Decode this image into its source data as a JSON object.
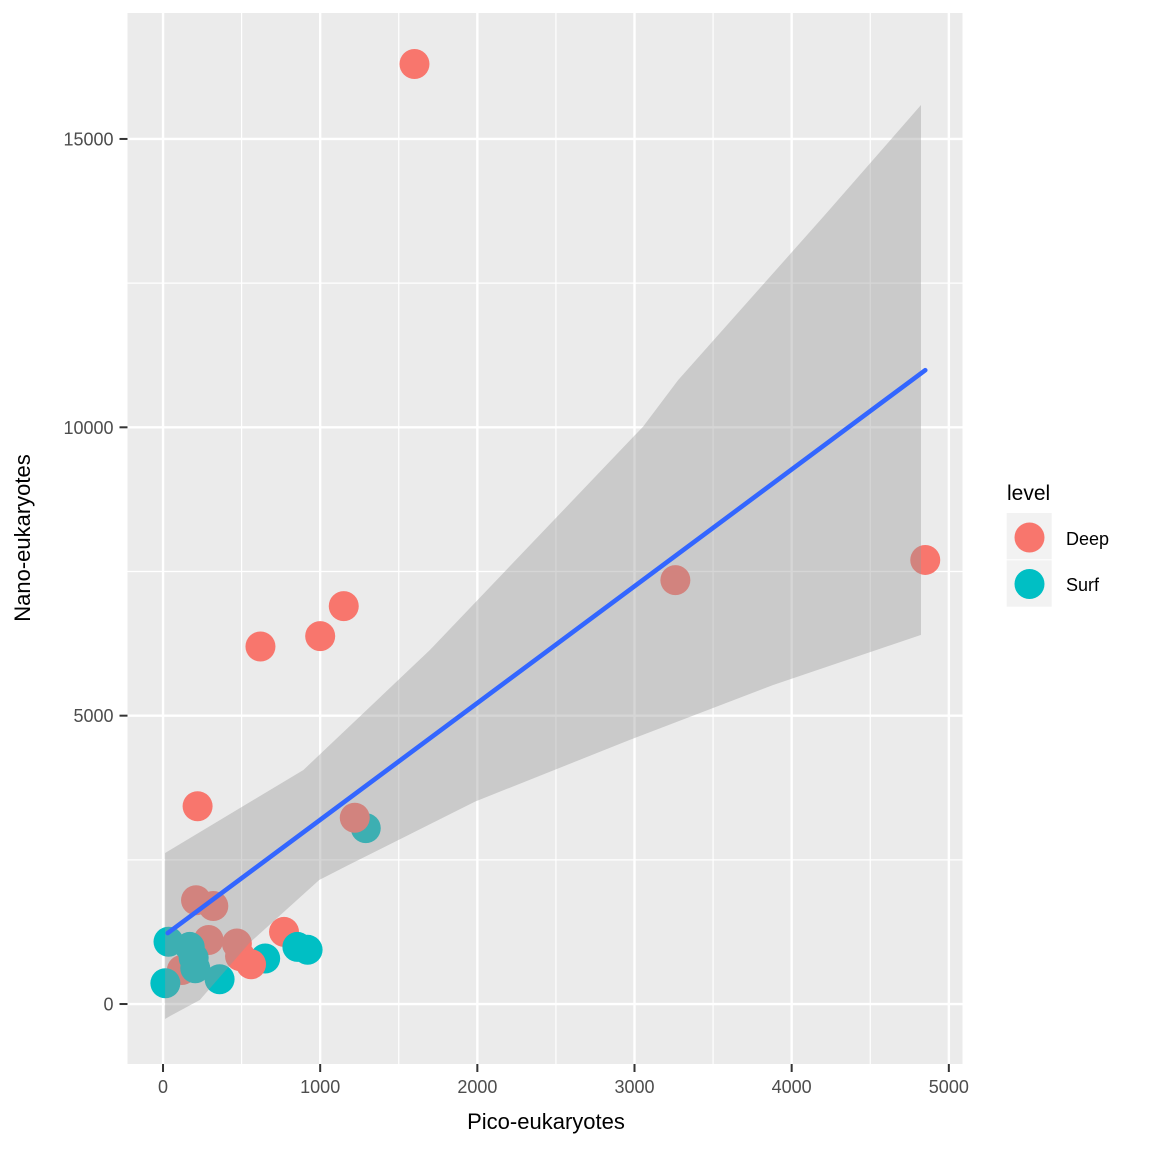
{
  "figure": {
    "background": "#FFFFFF",
    "panel_background": "#EBEBEB",
    "grid_color": "#FFFFFF",
    "tick_mark_color": "#333333",
    "tick_text_color": "#4D4D4D"
  },
  "chart_data": {
    "type": "scatter",
    "title": "",
    "xlabel": "Pico-eukaryotes",
    "ylabel": "Nano-eukaryotes",
    "xlim": [
      -226,
      5087
    ],
    "ylim": [
      -1040,
      17184
    ],
    "x_ticks": [
      0,
      1000,
      2000,
      3000,
      4000,
      5000
    ],
    "y_ticks": [
      0,
      5000,
      10000,
      15000
    ],
    "x_minor_ticks": [
      500,
      1500,
      2500,
      3500,
      4500
    ],
    "y_minor_ticks": [
      2500,
      7500,
      12500
    ],
    "grid": true,
    "point_radius": 15,
    "levels": {
      "Deep": "#F8766D",
      "Surf": "#00BFC4"
    },
    "points": [
      {
        "x": 120,
        "y": 590,
        "level": "Deep"
      },
      {
        "x": 290,
        "y": 1110,
        "level": "Deep"
      },
      {
        "x": 470,
        "y": 1050,
        "level": "Deep"
      },
      {
        "x": 490,
        "y": 830,
        "level": "Deep"
      },
      {
        "x": 210,
        "y": 1800,
        "level": "Deep"
      },
      {
        "x": 320,
        "y": 1700,
        "level": "Deep"
      },
      {
        "x": 15,
        "y": 360,
        "level": "Surf"
      },
      {
        "x": 35,
        "y": 1080,
        "level": "Surf"
      },
      {
        "x": 170,
        "y": 990,
        "level": "Surf"
      },
      {
        "x": 195,
        "y": 800,
        "level": "Surf"
      },
      {
        "x": 205,
        "y": 620,
        "level": "Surf"
      },
      {
        "x": 360,
        "y": 430,
        "level": "Surf"
      },
      {
        "x": 650,
        "y": 790,
        "level": "Surf"
      },
      {
        "x": 770,
        "y": 1250,
        "level": "Deep"
      },
      {
        "x": 855,
        "y": 990,
        "level": "Surf"
      },
      {
        "x": 920,
        "y": 940,
        "level": "Surf"
      },
      {
        "x": 560,
        "y": 690,
        "level": "Deep"
      },
      {
        "x": 1290,
        "y": 3050,
        "level": "Surf"
      },
      {
        "x": 1220,
        "y": 3230,
        "level": "Deep"
      },
      {
        "x": 220,
        "y": 3430,
        "level": "Deep"
      },
      {
        "x": 620,
        "y": 6200,
        "level": "Deep"
      },
      {
        "x": 1000,
        "y": 6380,
        "level": "Deep"
      },
      {
        "x": 1150,
        "y": 6900,
        "level": "Deep"
      },
      {
        "x": 1600,
        "y": 16300,
        "level": "Deep"
      },
      {
        "x": 3260,
        "y": 7350,
        "level": "Deep"
      },
      {
        "x": 4850,
        "y": 7700,
        "level": "Deep"
      }
    ],
    "smooth_line": {
      "color": "#3366FF",
      "width": 4.6,
      "from": {
        "x": 30,
        "y": 1230
      },
      "to": {
        "x": 4850,
        "y": 10990
      }
    },
    "ci_band": {
      "fill": "#999999",
      "opacity": 0.4,
      "upper": [
        [
          13,
          2618
        ],
        [
          469,
          3364
        ],
        [
          893,
          4058
        ],
        [
          1698,
          6138
        ],
        [
          3055,
          10012
        ],
        [
          3278,
          10821
        ],
        [
          4221,
          13711
        ],
        [
          4823,
          15589
        ]
      ],
      "lower": [
        [
          13,
          -260
        ],
        [
          44,
          -210
        ],
        [
          234,
          70
        ],
        [
          550,
          1060
        ],
        [
          994,
          2150
        ],
        [
          1180,
          2410
        ],
        [
          1985,
          3510
        ],
        [
          2970,
          4580
        ],
        [
          3880,
          5530
        ],
        [
          4823,
          6400
        ]
      ]
    },
    "legend": {
      "title": "level",
      "position": "right",
      "entries": [
        {
          "label": "Deep",
          "color": "#F8766D"
        },
        {
          "label": "Surf",
          "color": "#00BFC4"
        }
      ]
    }
  }
}
